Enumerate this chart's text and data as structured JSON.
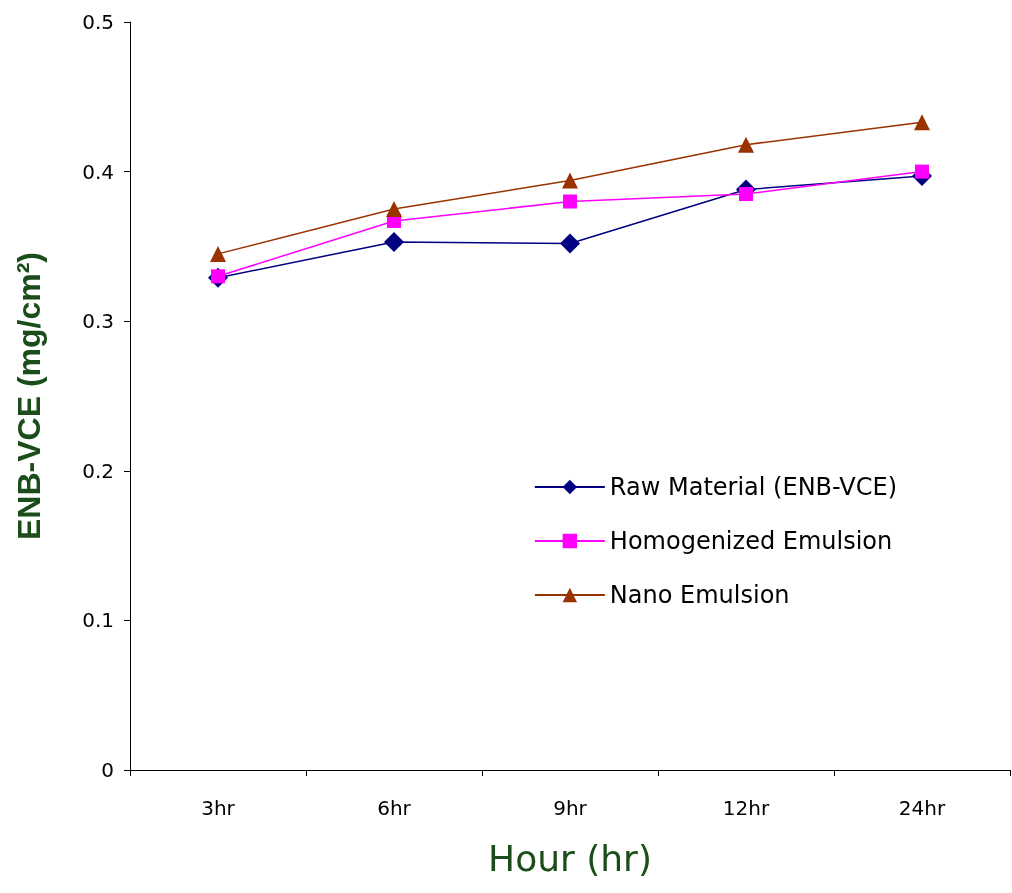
{
  "chart_data": {
    "type": "line",
    "xlabel": "Hour (hr)",
    "ylabel": "ENB-VCE (mg/cm²)",
    "categories": [
      "3hr",
      "6hr",
      "9hr",
      "12hr",
      "24hr"
    ],
    "series": [
      {
        "name": "Raw Material (ENB-VCE)",
        "color": "#000080",
        "marker": "diamond",
        "values": [
          0.329,
          0.353,
          0.352,
          0.388,
          0.397
        ]
      },
      {
        "name": "Homogenized Emulsion",
        "color": "#ff00ff",
        "marker": "square",
        "values": [
          0.33,
          0.367,
          0.38,
          0.385,
          0.4
        ]
      },
      {
        "name": "Nano Emulsion",
        "color": "#993300",
        "marker": "triangle",
        "values": [
          0.345,
          0.375,
          0.394,
          0.418,
          0.433
        ]
      }
    ],
    "ylim": [
      0,
      0.5
    ],
    "yticks": [
      0,
      0.1,
      0.2,
      0.3,
      0.4,
      0.5
    ],
    "grid": false,
    "legend": "right",
    "line_style": "solid"
  }
}
